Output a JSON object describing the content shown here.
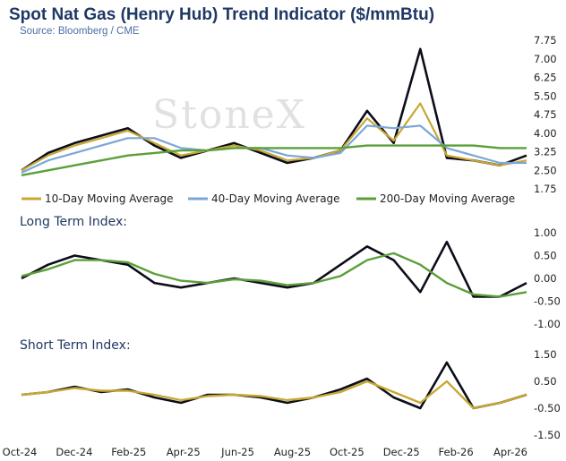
{
  "header": {
    "title": "Spot Nat Gas (Henry Hub) Trend Indicator ($/mmBtu)",
    "source": "Source: Bloomberg / CME",
    "watermark": "StoneX"
  },
  "colors": {
    "price": "#0d0d1a",
    "ma10": "#c8a832",
    "ma40": "#7ba7d7",
    "ma200": "#5aa03a",
    "long_index": "#5aa03a",
    "short_index": "#c8a832"
  },
  "chart_data": [
    {
      "type": "line",
      "panel": "price",
      "title": "",
      "ylim": [
        1.75,
        7.75
      ],
      "y_ticks": [
        "7.75",
        "7.00",
        "6.25",
        "5.50",
        "4.75",
        "4.00",
        "3.25",
        "2.50",
        "1.75"
      ],
      "x": [
        "Oct-24",
        "Nov-24",
        "Dec-24",
        "Jan-25",
        "Feb-25",
        "Mar-25",
        "Apr-25",
        "May-25",
        "Jun-25",
        "Jul-25",
        "Aug-25",
        "Sep-25",
        "Oct-25",
        "Nov-25",
        "Dec-25",
        "Jan-26",
        "Feb-26",
        "Mar-26",
        "Apr-26",
        "Apr-26e"
      ],
      "series": [
        {
          "name": "",
          "color_key": "price",
          "values": [
            2.5,
            3.2,
            3.6,
            3.9,
            4.2,
            3.5,
            3.0,
            3.3,
            3.6,
            3.2,
            2.8,
            3.0,
            3.3,
            4.9,
            3.6,
            7.4,
            3.0,
            2.9,
            2.7,
            3.1
          ]
        },
        {
          "name": "10-Day Moving Average",
          "color_key": "ma10",
          "values": [
            2.5,
            3.1,
            3.5,
            3.8,
            4.1,
            3.6,
            3.1,
            3.3,
            3.5,
            3.3,
            2.9,
            3.0,
            3.3,
            4.6,
            3.7,
            5.2,
            3.1,
            2.9,
            2.7,
            2.9
          ]
        },
        {
          "name": "40-Day Moving Average",
          "color_key": "ma40",
          "values": [
            2.4,
            2.9,
            3.2,
            3.5,
            3.8,
            3.8,
            3.4,
            3.3,
            3.4,
            3.4,
            3.1,
            3.0,
            3.2,
            4.3,
            4.2,
            4.3,
            3.4,
            3.1,
            2.8,
            2.8
          ]
        },
        {
          "name": "200-Day Moving Average",
          "color_key": "ma200",
          "values": [
            2.3,
            2.5,
            2.7,
            2.9,
            3.1,
            3.2,
            3.3,
            3.3,
            3.4,
            3.4,
            3.4,
            3.4,
            3.4,
            3.5,
            3.5,
            3.5,
            3.5,
            3.5,
            3.4,
            3.4
          ]
        }
      ]
    },
    {
      "type": "line",
      "panel": "long",
      "title": "Long Term Index:",
      "ylim": [
        -1.0,
        1.0
      ],
      "y_ticks": [
        "1.00",
        "0.50",
        "0.00",
        "-0.50",
        "-1.00"
      ],
      "x": [
        "Oct-24",
        "Nov-24",
        "Dec-24",
        "Jan-25",
        "Feb-25",
        "Mar-25",
        "Apr-25",
        "May-25",
        "Jun-25",
        "Jul-25",
        "Aug-25",
        "Sep-25",
        "Oct-25",
        "Nov-25",
        "Dec-25",
        "Jan-26",
        "Feb-26",
        "Mar-26",
        "Apr-26",
        "Apr-26e"
      ],
      "series": [
        {
          "name": "",
          "color_key": "price",
          "values": [
            0.0,
            0.3,
            0.5,
            0.4,
            0.3,
            -0.1,
            -0.2,
            -0.1,
            0.0,
            -0.1,
            -0.2,
            -0.1,
            0.3,
            0.7,
            0.4,
            -0.3,
            0.8,
            -0.4,
            -0.4,
            -0.1
          ]
        },
        {
          "name": "",
          "color_key": "long_index",
          "values": [
            0.05,
            0.2,
            0.4,
            0.4,
            0.35,
            0.1,
            -0.05,
            -0.1,
            -0.02,
            -0.05,
            -0.15,
            -0.1,
            0.05,
            0.4,
            0.55,
            0.3,
            -0.1,
            -0.35,
            -0.4,
            -0.3
          ]
        }
      ]
    },
    {
      "type": "line",
      "panel": "short",
      "title": "Short Term Index:",
      "ylim": [
        -1.5,
        1.5
      ],
      "y_ticks": [
        "1.50",
        "0.50",
        "-0.50",
        "-1.50"
      ],
      "x": [
        "Oct-24",
        "Nov-24",
        "Dec-24",
        "Jan-25",
        "Feb-25",
        "Mar-25",
        "Apr-25",
        "May-25",
        "Jun-25",
        "Jul-25",
        "Aug-25",
        "Sep-25",
        "Oct-25",
        "Nov-25",
        "Dec-25",
        "Jan-26",
        "Feb-26",
        "Mar-26",
        "Apr-26",
        "Apr-26e"
      ],
      "series": [
        {
          "name": "",
          "color_key": "price",
          "values": [
            0.0,
            0.1,
            0.3,
            0.1,
            0.2,
            -0.1,
            -0.3,
            0.0,
            0.0,
            -0.1,
            -0.3,
            -0.1,
            0.2,
            0.6,
            -0.1,
            -0.5,
            1.2,
            -0.5,
            -0.3,
            0.0
          ]
        },
        {
          "name": "",
          "color_key": "short_index",
          "values": [
            0.0,
            0.1,
            0.25,
            0.15,
            0.15,
            0.0,
            -0.2,
            -0.05,
            0.0,
            -0.05,
            -0.2,
            -0.1,
            0.1,
            0.5,
            0.1,
            -0.3,
            0.5,
            -0.5,
            -0.3,
            0.0
          ]
        }
      ]
    }
  ],
  "x_axis": {
    "labels": [
      "Oct-24",
      "Dec-24",
      "Feb-25",
      "Apr-25",
      "Jun-25",
      "Aug-25",
      "Oct-25",
      "Dec-25",
      "Feb-26",
      "Apr-26"
    ]
  }
}
